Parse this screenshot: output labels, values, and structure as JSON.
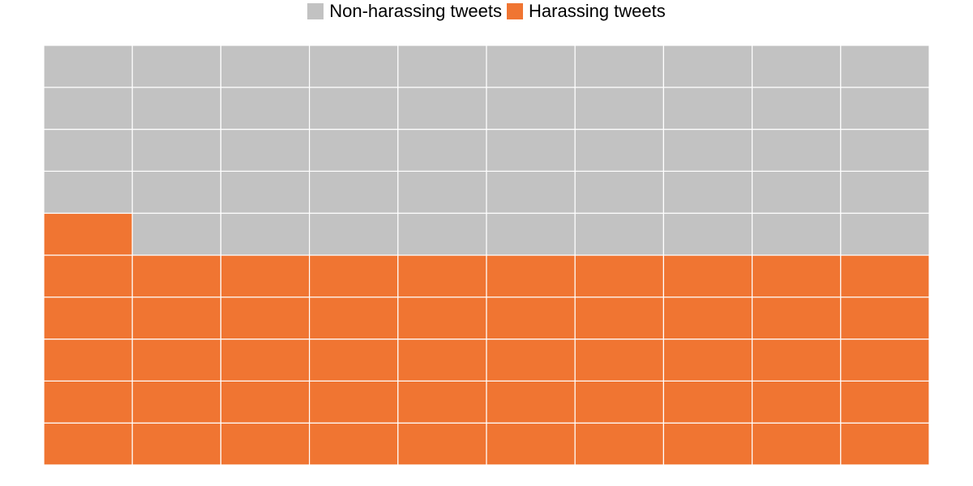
{
  "chart_data": {
    "type": "waffle",
    "title": "",
    "total_cells": 100,
    "rows": 10,
    "columns": 10,
    "fill_order": "bottom-to-top, left-to-right",
    "series": [
      {
        "name": "Harassing tweets",
        "value": 51,
        "color": "#F07532"
      },
      {
        "name": "Non-harassing tweets",
        "value": 49,
        "color": "#C2C2C2"
      }
    ],
    "legend": {
      "position": "top",
      "items": [
        {
          "label": "Non-harassing tweets",
          "color": "#C2C2C2"
        },
        {
          "label": "Harassing tweets",
          "color": "#F07532"
        }
      ]
    },
    "grid_line_color": "#FFFFFF"
  }
}
